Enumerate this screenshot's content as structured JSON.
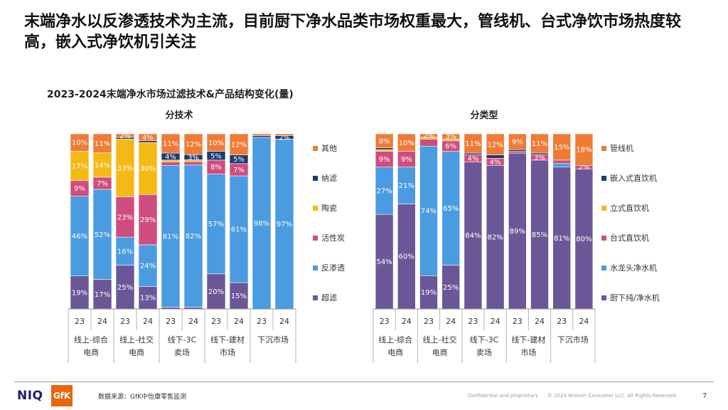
{
  "page": {
    "title": "末端净水以反渗透技术为主流，目前厨下净水品类市场权重最大，管线机、台式净饮市场热度较高，嵌入式净饮机引关注",
    "subtitle": "2023-2024末端净水市场过滤技术&产品结构变化(量)",
    "source": "数据来源：GfK中怡康零售监测",
    "confidential": "Confidential and proprietary",
    "copyright": "© 2024 Nielsen Consumer LLC. All Rights Reserved.",
    "page_number": "7",
    "logo_niq": "NIQ",
    "logo_gfk": "GfK"
  },
  "chart_data": [
    {
      "type": "bar",
      "stacked": true,
      "normalized": true,
      "title": "分技术",
      "groups": [
        "线上-综合电商",
        "线上-社交电商",
        "线下-3C卖场",
        "线下-建材市场",
        "下沉市场"
      ],
      "categories": [
        "23",
        "24",
        "23",
        "24",
        "23",
        "24",
        "23",
        "24",
        "23",
        "24"
      ],
      "legend_position": "right",
      "series": [
        {
          "name": "超滤",
          "color": "#6b5797",
          "values": [
            19,
            17,
            25,
            13,
            1,
            1,
            20,
            15,
            0,
            0
          ],
          "labels": [
            "19%",
            "17%",
            "25%",
            "13%",
            "",
            "",
            "20%",
            "15%",
            "",
            ""
          ]
        },
        {
          "name": "反渗透",
          "color": "#4a9be0",
          "values": [
            46,
            52,
            16,
            24,
            81,
            82,
            57,
            61,
            98,
            97
          ],
          "labels": [
            "46%",
            "52%",
            "16%",
            "24%",
            "81%",
            "82%",
            "57%",
            "61%",
            "98%",
            "97%"
          ]
        },
        {
          "name": "活性炭",
          "color": "#cf4d7e",
          "values": [
            9,
            7,
            23,
            29,
            2,
            2,
            8,
            7,
            0,
            0
          ],
          "labels": [
            "9%",
            "7%",
            "23%",
            "29%",
            "",
            "",
            "8%",
            "7%",
            "",
            ""
          ]
        },
        {
          "name": "陶瓷",
          "color": "#f5b916",
          "values": [
            17,
            14,
            33,
            30,
            1,
            1,
            0,
            0,
            0,
            0
          ],
          "labels": [
            "17%",
            "14%",
            "33%",
            "30%",
            "",
            "",
            "",
            "",
            "",
            ""
          ]
        },
        {
          "name": "纳滤",
          "color": "#1c3a72",
          "values": [
            0,
            0,
            1,
            1,
            4,
            3,
            5,
            5,
            1,
            2
          ],
          "labels": [
            "",
            "",
            "",
            "",
            "4%",
            "3%",
            "5%",
            "5%",
            "",
            "2%"
          ]
        },
        {
          "name": "其他",
          "color": "#ee7b36",
          "values": [
            10,
            11,
            2,
            4,
            11,
            12,
            10,
            12,
            1,
            1
          ],
          "labels": [
            "10%",
            "11%",
            "2%",
            "4%",
            "11%",
            "12%",
            "10%",
            "12%",
            "",
            ""
          ]
        }
      ]
    },
    {
      "type": "bar",
      "stacked": true,
      "normalized": true,
      "title": "分类型",
      "groups": [
        "线上-综合电商",
        "线上-社交电商",
        "线下-3C卖场",
        "线下-建材市场",
        "下沉市场"
      ],
      "categories": [
        "23",
        "24",
        "23",
        "24",
        "23",
        "24",
        "23",
        "24",
        "23",
        "24"
      ],
      "legend_position": "right",
      "series": [
        {
          "name": "厨下纯/净水机",
          "color": "#6b5797",
          "values": [
            54,
            60,
            19,
            25,
            84,
            82,
            89,
            85,
            81,
            80
          ],
          "labels": [
            "54%",
            "60%",
            "19%",
            "25%",
            "84%",
            "82%",
            "89%",
            "85%",
            "81%",
            "80%"
          ]
        },
        {
          "name": "水龙头净水机",
          "color": "#4a9be0",
          "values": [
            27,
            21,
            74,
            65,
            0,
            0,
            0,
            0,
            2,
            0
          ],
          "labels": [
            "27%",
            "21%",
            "74%",
            "65%",
            "",
            "",
            "",
            "",
            "",
            ""
          ]
        },
        {
          "name": "台式直饮机",
          "color": "#cf4d7e",
          "values": [
            9,
            9,
            4,
            6,
            4,
            4,
            1,
            3,
            2,
            2
          ],
          "labels": [
            "9%",
            "9%",
            "",
            "6%",
            "4%",
            "4%",
            "",
            "3%",
            "",
            "2%"
          ]
        },
        {
          "name": "立式直饮机",
          "color": "#f5b916",
          "values": [
            1,
            0,
            1,
            1,
            0,
            0,
            0,
            0,
            0,
            0
          ],
          "labels": [
            "",
            "",
            "",
            "",
            "",
            "",
            "",
            "",
            "",
            ""
          ]
        },
        {
          "name": "嵌入式直饮机",
          "color": "#1c3a72",
          "values": [
            1,
            0,
            0,
            0,
            1,
            2,
            1,
            1,
            0,
            0
          ],
          "labels": [
            "",
            "",
            "",
            "",
            "",
            "",
            "",
            "",
            "",
            ""
          ]
        },
        {
          "name": "管线机",
          "color": "#ee7b36",
          "values": [
            8,
            10,
            2,
            3,
            11,
            12,
            9,
            11,
            15,
            18
          ],
          "labels": [
            "8%",
            "10%",
            "2%",
            "3%",
            "11%",
            "12%",
            "9%",
            "11%",
            "15%",
            "18%"
          ]
        }
      ]
    }
  ]
}
